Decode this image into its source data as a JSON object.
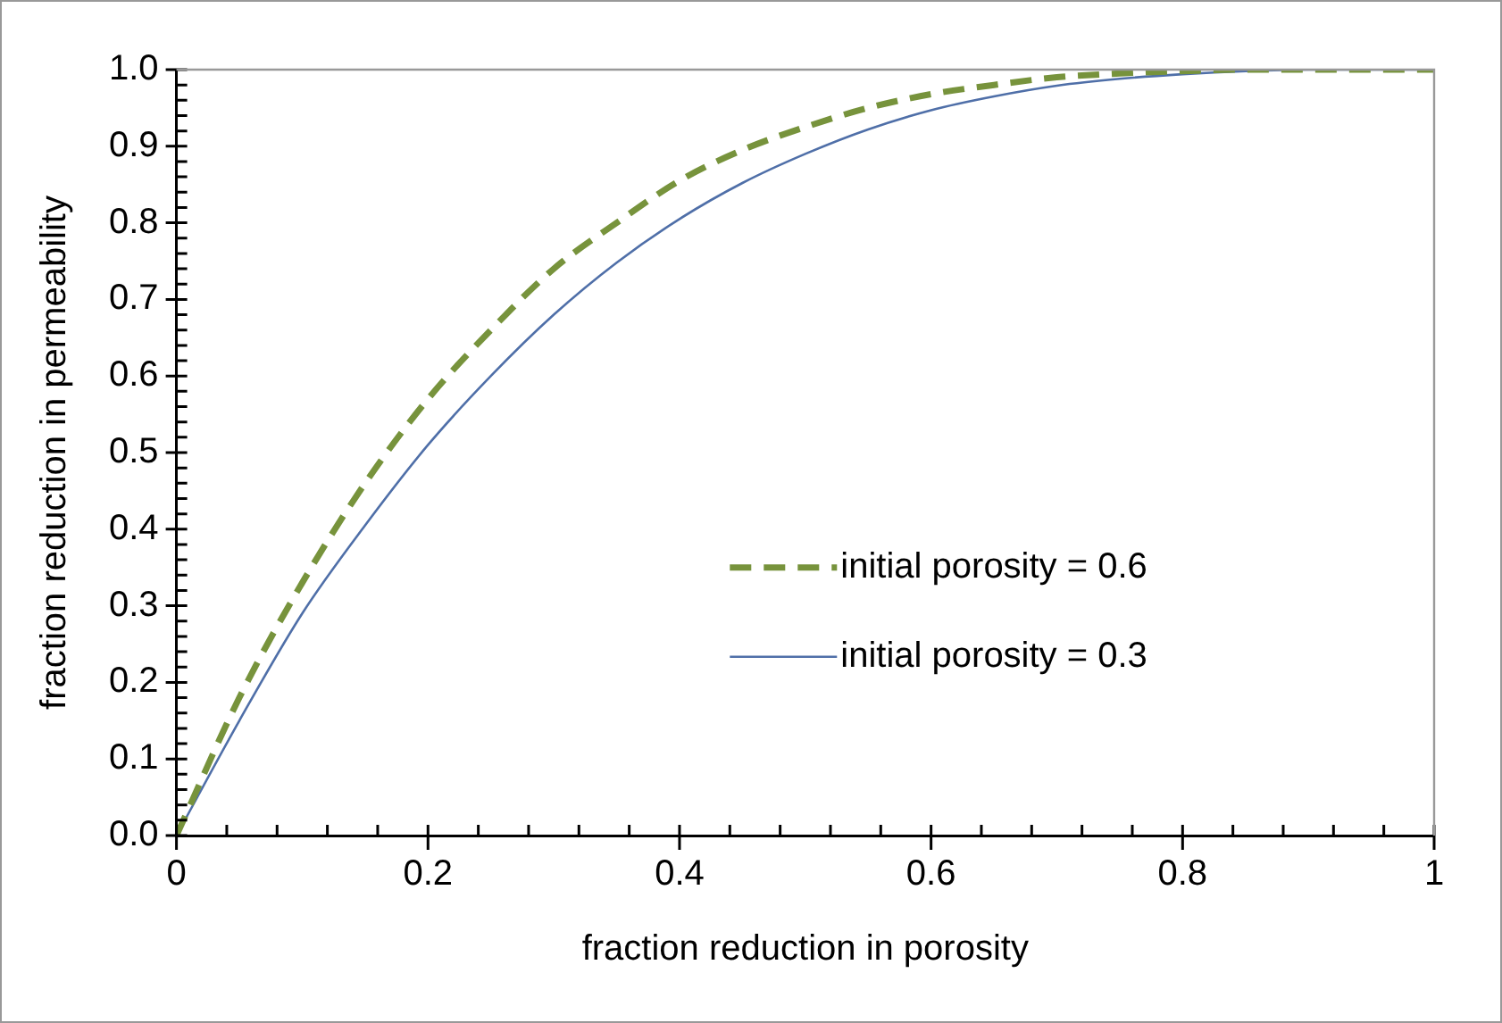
{
  "chart_data": {
    "type": "line",
    "xlabel": "fraction reduction in porosity",
    "ylabel": "fraction reduction in permeability",
    "legend": "right",
    "xlim": [
      0,
      1
    ],
    "ylim": [
      0,
      1
    ],
    "xticks": [
      0,
      {
        "value": 0.04,
        "label": null
      },
      {
        "value": 0.08,
        "label": null
      },
      {
        "value": 0.12,
        "label": null
      },
      {
        "value": 0.16,
        "label": null
      },
      0.2,
      {
        "value": 0.24,
        "label": null
      },
      {
        "value": 0.28,
        "label": null
      },
      {
        "value": 0.32,
        "label": null
      },
      {
        "value": 0.36,
        "label": null
      },
      0.4,
      {
        "value": 0.44,
        "label": null
      },
      {
        "value": 0.48,
        "label": null
      },
      {
        "value": 0.52,
        "label": null
      },
      {
        "value": 0.56,
        "label": null
      },
      0.6,
      {
        "value": 0.64,
        "label": null
      },
      {
        "value": 0.68,
        "label": null
      },
      {
        "value": 0.72,
        "label": null
      },
      {
        "value": 0.76,
        "label": null
      },
      0.8,
      {
        "value": 0.84,
        "label": null
      },
      {
        "value": 0.88,
        "label": null
      },
      {
        "value": 0.92,
        "label": null
      },
      {
        "value": 0.96,
        "label": null
      },
      1
    ],
    "yticks": [
      {
        "value": 0,
        "label": "0.0"
      },
      {
        "value": 0.02,
        "label": null
      },
      {
        "value": 0.04,
        "label": null
      },
      {
        "value": 0.06,
        "label": null
      },
      {
        "value": 0.08,
        "label": null
      },
      0.1,
      {
        "value": 0.12,
        "label": null
      },
      {
        "value": 0.14,
        "label": null
      },
      {
        "value": 0.16,
        "label": null
      },
      {
        "value": 0.18,
        "label": null
      },
      0.2,
      {
        "value": 0.22,
        "label": null
      },
      {
        "value": 0.24,
        "label": null
      },
      {
        "value": 0.26,
        "label": null
      },
      {
        "value": 0.28,
        "label": null
      },
      0.3,
      {
        "value": 0.32,
        "label": null
      },
      {
        "value": 0.34,
        "label": null
      },
      {
        "value": 0.36,
        "label": null
      },
      {
        "value": 0.38,
        "label": null
      },
      0.4,
      {
        "value": 0.42,
        "label": null
      },
      {
        "value": 0.44,
        "label": null
      },
      {
        "value": 0.46,
        "label": null
      },
      {
        "value": 0.48,
        "label": null
      },
      0.5,
      {
        "value": 0.52,
        "label": null
      },
      {
        "value": 0.54,
        "label": null
      },
      {
        "value": 0.56,
        "label": null
      },
      {
        "value": 0.58,
        "label": null
      },
      0.6,
      {
        "value": 0.62,
        "label": null
      },
      {
        "value": 0.64,
        "label": null
      },
      {
        "value": 0.66,
        "label": null
      },
      {
        "value": 0.68,
        "label": null
      },
      0.7,
      {
        "value": 0.72,
        "label": null
      },
      {
        "value": 0.74,
        "label": null
      },
      {
        "value": 0.76,
        "label": null
      },
      {
        "value": 0.78,
        "label": null
      },
      0.8,
      {
        "value": 0.82,
        "label": null
      },
      {
        "value": 0.84,
        "label": null
      },
      {
        "value": 0.86,
        "label": null
      },
      {
        "value": 0.88,
        "label": null
      },
      0.9,
      {
        "value": 0.92,
        "label": null
      },
      {
        "value": 0.94,
        "label": null
      },
      {
        "value": 0.96,
        "label": null
      },
      {
        "value": 0.98,
        "label": null
      },
      {
        "value": 1,
        "label": "1.0"
      }
    ],
    "x": [
      0,
      0.05,
      0.1,
      0.15,
      0.2,
      0.25,
      0.3,
      0.35,
      0.4,
      0.45,
      0.5,
      0.55,
      0.6,
      0.65,
      0.7,
      0.75,
      0.8,
      0.85,
      0.9,
      0.95,
      1
    ],
    "series": [
      {
        "name": "initial porosity = 0.6",
        "color": "#77933c",
        "line_style": "dashed",
        "values": [
          0,
          0.18,
          0.33,
          0.46,
          0.57,
          0.66,
          0.74,
          0.8,
          0.855,
          0.895,
          0.925,
          0.95,
          0.968,
          0.98,
          0.99,
          0.995,
          0.998,
          1,
          1,
          1,
          1
        ]
      },
      {
        "name": "initial porosity = 0.3",
        "color": "#4f6fa8",
        "line_style": "solid",
        "values": [
          0,
          0.15,
          0.29,
          0.405,
          0.51,
          0.6,
          0.68,
          0.748,
          0.805,
          0.852,
          0.89,
          0.922,
          0.947,
          0.965,
          0.979,
          0.988,
          0.994,
          0.998,
          1,
          1,
          1
        ]
      }
    ]
  }
}
